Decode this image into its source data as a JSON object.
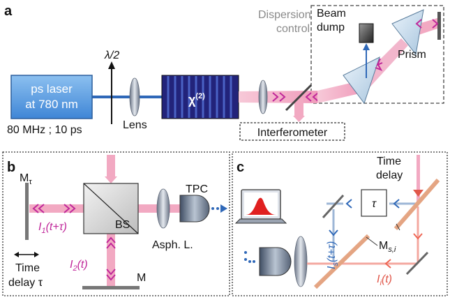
{
  "panels": {
    "a": {
      "letter": "a",
      "laser_line1": "ps laser",
      "laser_line2": "at 780 nm",
      "rep_rate": "80 MHz ; 10 ps",
      "waveplate": "λ/2",
      "lens": "Lens",
      "crystal_main": "χ",
      "crystal_sup": "(2)",
      "dispersion_line1": "Dispersion",
      "dispersion_line2": "control",
      "beam_dump_line1": "Beam",
      "beam_dump_line2": "dump",
      "prism": "Prism",
      "interferometer": "Interferometer"
    },
    "b": {
      "letter": "b",
      "mirror_tau_main": "M",
      "mirror_tau_sub": "τ",
      "intensity1_main": "I",
      "intensity1_sub": "1",
      "intensity1_arg": "(t+τ)",
      "bs": "BS",
      "tpc": "TPC",
      "asph_lens": "Asph. L.",
      "intensity2_main": "I",
      "intensity2_sub": "2",
      "intensity2_arg": "(t)",
      "mirror": "M",
      "time_delay_line1": "Time",
      "time_delay_line2": "delay τ"
    },
    "c": {
      "letter": "c",
      "time_delay_line1": "Time",
      "time_delay_line2": "delay",
      "tau_box": "τ",
      "is_main": "I",
      "is_sub": "s",
      "is_arg": "(t+τ)",
      "mirror_si_main": "M",
      "mirror_si_sub": "s,i",
      "ii_main": "I",
      "ii_sub": "i",
      "ii_arg": "(t)"
    }
  },
  "colors": {
    "beam_pink": "#f2a9c2",
    "beam_blue": "#2f68b8",
    "arrow_magenta": "#c0279a",
    "arrow_red": "#ee6452",
    "laser_fill": "#5e9fe2",
    "crystal_fill": "#22237a",
    "dashed_border": "#333333"
  }
}
